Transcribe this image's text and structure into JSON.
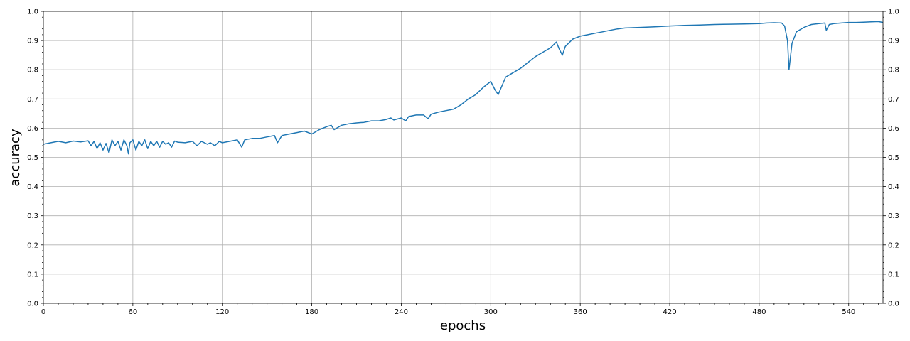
{
  "chart_data": {
    "type": "line",
    "title": "",
    "xlabel": "epochs",
    "ylabel": "accuracy",
    "xlim": [
      0,
      563
    ],
    "ylim": [
      0.0,
      1.0
    ],
    "x_ticks": [
      0,
      60,
      120,
      180,
      240,
      300,
      360,
      420,
      480,
      540
    ],
    "x_tick_labels": [
      "0",
      "60",
      "120",
      "180",
      "240",
      "300",
      "360",
      "420",
      "480",
      "540"
    ],
    "y_ticks": [
      0.0,
      0.1,
      0.2,
      0.3,
      0.4,
      0.5,
      0.6,
      0.7,
      0.8,
      0.9,
      1.0
    ],
    "y_tick_labels": [
      "0.0",
      "0.1",
      "0.2",
      "0.3",
      "0.4",
      "0.5",
      "0.6",
      "0.7",
      "0.8",
      "0.9",
      "1.0"
    ],
    "grid": true,
    "legend": "none",
    "color": "#1f77b4",
    "series": [
      {
        "x": [
          0,
          5,
          10,
          15,
          20,
          25,
          30,
          32,
          34,
          36,
          38,
          40,
          42,
          44,
          46,
          48,
          50,
          52,
          54,
          56,
          57,
          58,
          60,
          62,
          64,
          66,
          68,
          70,
          72,
          74,
          76,
          78,
          80,
          82,
          84,
          86,
          88,
          90,
          95,
          100,
          103,
          106,
          110,
          112,
          115,
          118,
          120,
          125,
          130,
          133,
          135,
          140,
          145,
          150,
          155,
          157,
          160,
          165,
          170,
          175,
          180,
          185,
          190,
          193,
          195,
          200,
          205,
          210,
          215,
          220,
          225,
          230,
          233,
          235,
          240,
          243,
          245,
          250,
          255,
          258,
          260,
          265,
          270,
          275,
          280,
          285,
          290,
          295,
          300,
          303,
          305,
          310,
          315,
          320,
          325,
          330,
          335,
          340,
          344,
          346,
          348,
          350,
          355,
          360,
          365,
          370,
          375,
          380,
          385,
          390,
          400,
          410,
          420,
          430,
          440,
          450,
          460,
          470,
          480,
          485,
          490,
          495,
          497,
          499,
          500,
          502,
          505,
          510,
          515,
          520,
          524,
          525,
          527,
          530,
          535,
          540,
          545,
          550,
          555,
          560,
          563
        ],
        "y": [
          0.545,
          0.55,
          0.555,
          0.55,
          0.556,
          0.553,
          0.557,
          0.54,
          0.555,
          0.53,
          0.55,
          0.525,
          0.548,
          0.515,
          0.56,
          0.54,
          0.555,
          0.525,
          0.56,
          0.54,
          0.512,
          0.55,
          0.56,
          0.525,
          0.555,
          0.54,
          0.56,
          0.53,
          0.555,
          0.54,
          0.555,
          0.535,
          0.555,
          0.545,
          0.55,
          0.535,
          0.556,
          0.552,
          0.55,
          0.555,
          0.54,
          0.555,
          0.545,
          0.55,
          0.54,
          0.555,
          0.55,
          0.555,
          0.56,
          0.535,
          0.56,
          0.565,
          0.565,
          0.57,
          0.575,
          0.55,
          0.575,
          0.58,
          0.585,
          0.59,
          0.58,
          0.595,
          0.605,
          0.61,
          0.595,
          0.61,
          0.615,
          0.618,
          0.62,
          0.625,
          0.625,
          0.63,
          0.635,
          0.628,
          0.635,
          0.625,
          0.64,
          0.645,
          0.645,
          0.632,
          0.648,
          0.655,
          0.66,
          0.665,
          0.68,
          0.7,
          0.715,
          0.74,
          0.76,
          0.73,
          0.715,
          0.775,
          0.79,
          0.805,
          0.825,
          0.845,
          0.86,
          0.875,
          0.895,
          0.87,
          0.85,
          0.88,
          0.905,
          0.915,
          0.92,
          0.925,
          0.93,
          0.935,
          0.94,
          0.943,
          0.945,
          0.947,
          0.95,
          0.952,
          0.953,
          0.955,
          0.956,
          0.957,
          0.958,
          0.96,
          0.961,
          0.96,
          0.95,
          0.9,
          0.8,
          0.89,
          0.93,
          0.945,
          0.955,
          0.958,
          0.96,
          0.935,
          0.955,
          0.958,
          0.96,
          0.962,
          0.962,
          0.963,
          0.964,
          0.965,
          0.962
        ]
      }
    ]
  }
}
